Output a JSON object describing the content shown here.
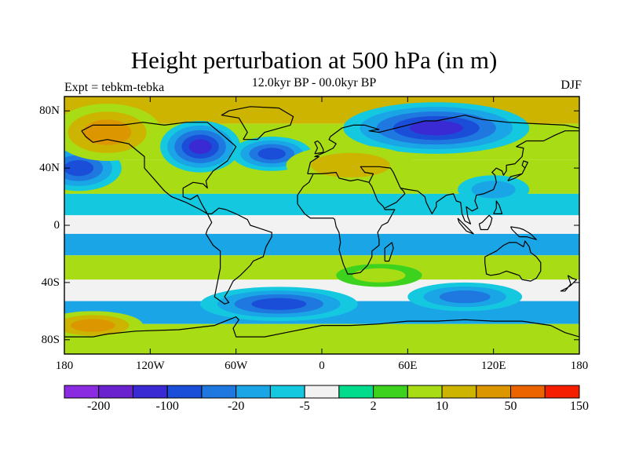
{
  "figure": {
    "title": "Height perturbation at 500 hPa (in m)",
    "subtitle": "12.0kyr BP - 00.0kyr BP",
    "left_label": "Expt = tebkm-tebka",
    "right_label": "DJF"
  },
  "axes": {
    "x_ticks": [
      {
        "label": "180",
        "lon": -180
      },
      {
        "label": "120W",
        "lon": -120
      },
      {
        "label": "60W",
        "lon": -60
      },
      {
        "label": "0",
        "lon": 0
      },
      {
        "label": "60E",
        "lon": 60
      },
      {
        "label": "120E",
        "lon": 120
      },
      {
        "label": "180",
        "lon": 180
      }
    ],
    "y_ticks": [
      {
        "label": "80N",
        "lat": 80
      },
      {
        "label": "40N",
        "lat": 40
      },
      {
        "label": "0",
        "lat": 0
      },
      {
        "label": "40S",
        "lat": -40
      },
      {
        "label": "80S",
        "lat": -80
      }
    ],
    "lon_range": [
      -180,
      180
    ],
    "lat_range": [
      -90,
      90
    ]
  },
  "colorbar": {
    "colors": [
      "#8a2be2",
      "#6a22cf",
      "#3a2ad4",
      "#1b4ed8",
      "#1f78e0",
      "#1aa6e6",
      "#14c8e0",
      "#f2f2f2",
      "#00dc8c",
      "#3cd21e",
      "#a8dc14",
      "#cdb400",
      "#dc9600",
      "#eb6400",
      "#f51e00"
    ],
    "labels": [
      {
        "text": "-200",
        "boundary": 1
      },
      {
        "text": "-100",
        "boundary": 3
      },
      {
        "text": "-20",
        "boundary": 5
      },
      {
        "text": "-5",
        "boundary": 7
      },
      {
        "text": "2",
        "boundary": 9
      },
      {
        "text": "10",
        "boundary": 11
      },
      {
        "text": "50",
        "boundary": 13
      },
      {
        "text": "150",
        "boundary": 15
      }
    ]
  },
  "field": {
    "bands": [
      {
        "lat": 80,
        "color": "#cdb400"
      },
      {
        "lat": 62,
        "color": "#a8dc14"
      },
      {
        "lat": 30,
        "color": "#a8dc14"
      },
      {
        "lat": 14,
        "color": "#14c8e0"
      },
      {
        "lat": 0,
        "color": "#f2f2f2"
      },
      {
        "lat": -12,
        "color": "#1aa6e6"
      },
      {
        "lat": -30,
        "color": "#a8dc14"
      },
      {
        "lat": -46,
        "color": "#f2f2f2"
      },
      {
        "lat": -60,
        "color": "#1aa6e6"
      },
      {
        "lat": -78,
        "color": "#a8dc14"
      }
    ],
    "anomalies": [
      {
        "name": "pacific-low-nh",
        "lon": -170,
        "lat": 40,
        "rx": 30,
        "ry": 16,
        "levels": [
          "#14c8e0",
          "#1aa6e6",
          "#1f78e0",
          "#1b4ed8"
        ]
      },
      {
        "name": "canada-low",
        "lon": -85,
        "lat": 55,
        "rx": 28,
        "ry": 18,
        "levels": [
          "#14c8e0",
          "#1aa6e6",
          "#1f78e0",
          "#1b4ed8",
          "#3a2ad4"
        ]
      },
      {
        "name": "atlantic-low",
        "lon": -35,
        "lat": 50,
        "rx": 28,
        "ry": 12,
        "levels": [
          "#14c8e0",
          "#1aa6e6",
          "#1f78e0",
          "#1b4ed8"
        ]
      },
      {
        "name": "siberia-low",
        "lon": 80,
        "lat": 68,
        "rx": 65,
        "ry": 18,
        "levels": [
          "#14c8e0",
          "#1aa6e6",
          "#1f78e0",
          "#1b4ed8",
          "#3a2ad4"
        ]
      },
      {
        "name": "eurasia-high",
        "lon": 20,
        "lat": 42,
        "rx": 45,
        "ry": 14,
        "levels": [
          "#a8dc14",
          "#cdb400"
        ]
      },
      {
        "name": "na-high",
        "lon": -150,
        "lat": 65,
        "rx": 38,
        "ry": 20,
        "levels": [
          "#a8dc14",
          "#cdb400",
          "#dc9600"
        ]
      },
      {
        "name": "asia-blue",
        "lon": 120,
        "lat": 25,
        "rx": 25,
        "ry": 10,
        "levels": [
          "#14c8e0",
          "#1aa6e6"
        ]
      },
      {
        "name": "southern-low",
        "lon": -30,
        "lat": -55,
        "rx": 55,
        "ry": 12,
        "levels": [
          "#14c8e0",
          "#1aa6e6",
          "#1f78e0",
          "#1b4ed8"
        ]
      },
      {
        "name": "southern-low-2",
        "lon": 100,
        "lat": -50,
        "rx": 40,
        "ry": 10,
        "levels": [
          "#14c8e0",
          "#1aa6e6",
          "#1f78e0"
        ]
      },
      {
        "name": "sh-high-1",
        "lon": -160,
        "lat": -70,
        "rx": 35,
        "ry": 10,
        "levels": [
          "#a8dc14",
          "#cdb400",
          "#dc9600"
        ]
      },
      {
        "name": "sh-high-2",
        "lon": 40,
        "lat": -35,
        "rx": 30,
        "ry": 8,
        "levels": [
          "#3cd21e",
          "#a8dc14"
        ]
      }
    ]
  }
}
